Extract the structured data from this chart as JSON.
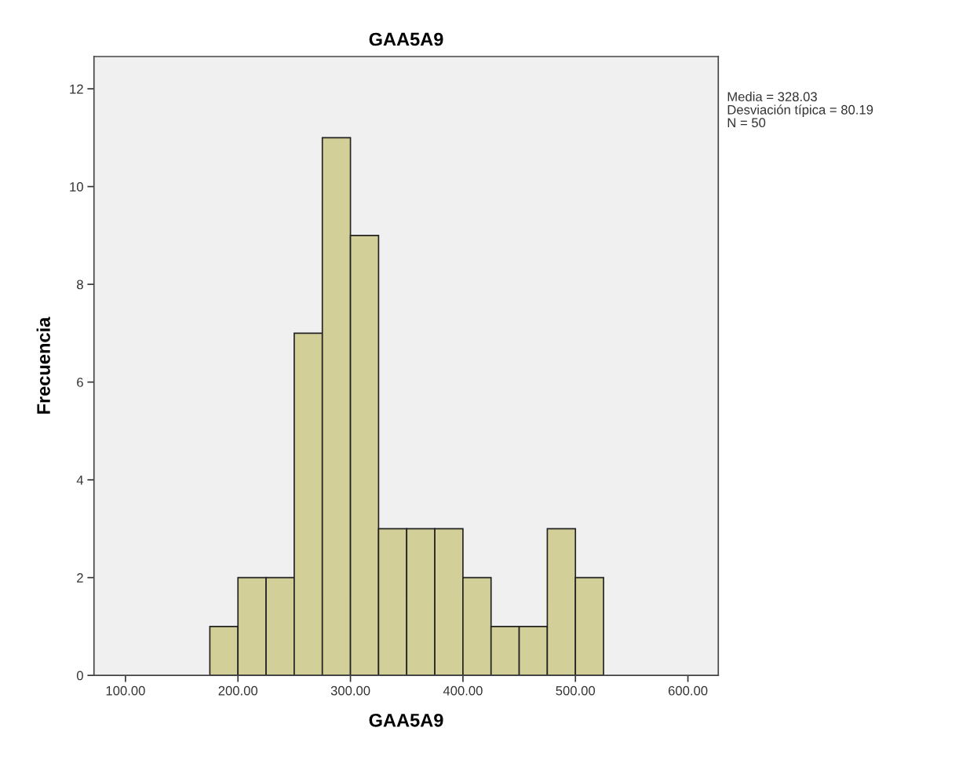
{
  "chart_data": {
    "type": "histogram",
    "title": "GAA5A9",
    "xlabel": "GAA5A9",
    "ylabel": "Frecuencia",
    "bins": [
      175,
      200,
      225,
      250,
      275,
      300,
      325,
      350,
      375,
      400,
      425,
      450,
      475,
      500,
      525
    ],
    "values": [
      1,
      2,
      2,
      7,
      11,
      9,
      3,
      3,
      3,
      2,
      1,
      1,
      3,
      2
    ],
    "color": "#d3cf98",
    "xlim": [
      72,
      627
    ],
    "xticks": [
      {
        "value": 100,
        "label": "100.00"
      },
      {
        "value": 200,
        "label": "200.00"
      },
      {
        "value": 300,
        "label": "300.00"
      },
      {
        "value": 400,
        "label": "400.00"
      },
      {
        "value": 500,
        "label": "500.00"
      },
      {
        "value": 600,
        "label": "600.00"
      }
    ],
    "ylim": [
      0,
      12.66
    ],
    "yticks": [
      0,
      2,
      4,
      6,
      8,
      10,
      12
    ],
    "grid": false,
    "legend": false,
    "annotations": [
      "Media = 328.03",
      "Desviación típica = 80.19",
      "N = 50"
    ]
  }
}
